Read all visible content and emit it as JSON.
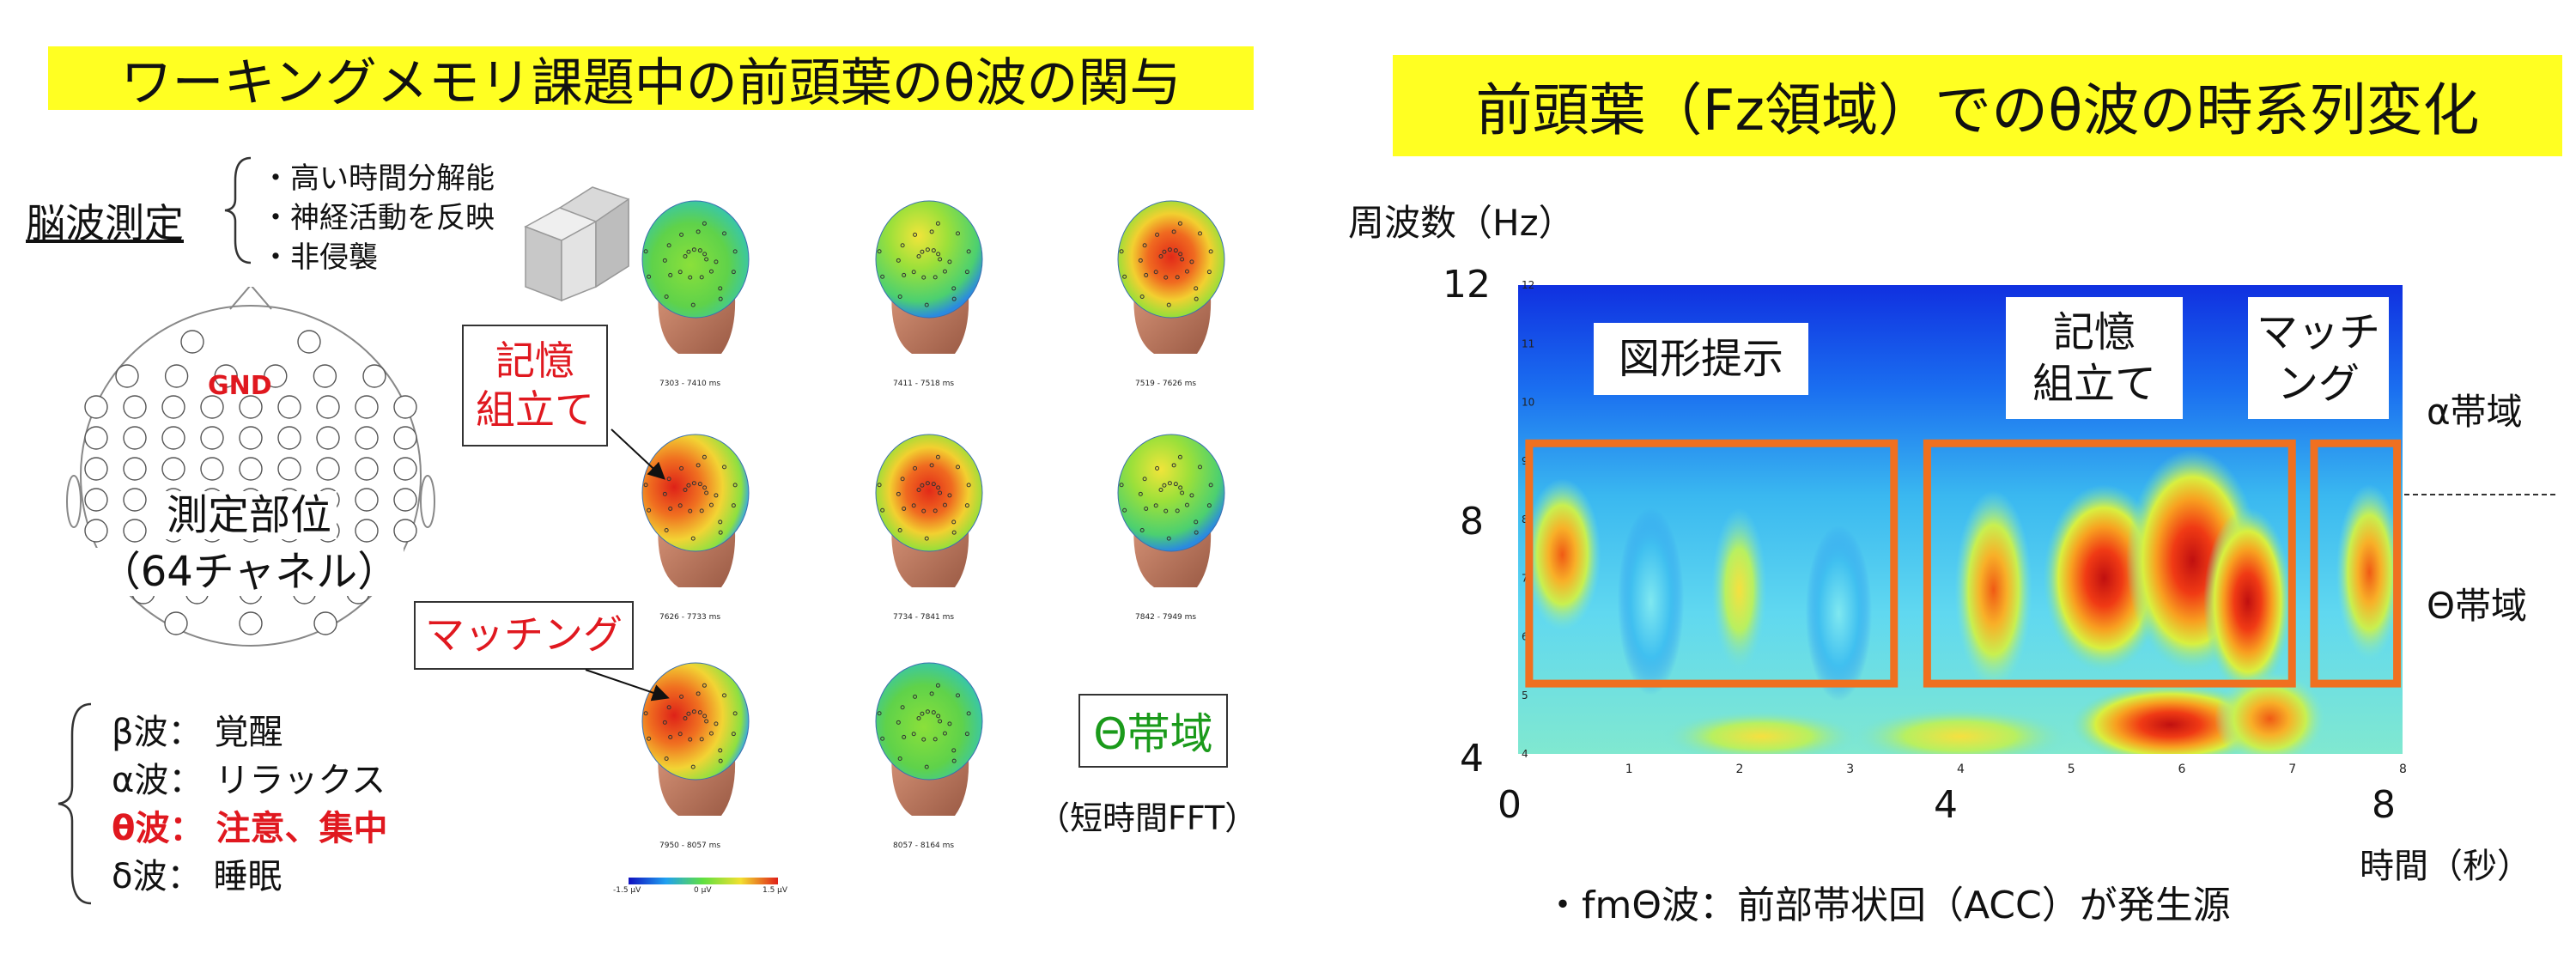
{
  "left": {
    "title": "ワーキングメモリ課題中の前頭葉のθ波の関与",
    "eeg_label": "脳波測定",
    "eeg_features": [
      "・高い時間分解能",
      "・神経活動を反映",
      "・非侵襲"
    ],
    "head_gnd": "GND",
    "head_caption_1": "測定部位",
    "head_caption_2": "（64チャネル）",
    "waves": [
      {
        "name": "β波：",
        "desc": "覚醒",
        "highlight": false
      },
      {
        "name": "α波：",
        "desc": "リラックス",
        "highlight": false
      },
      {
        "name": "θ波：",
        "desc": "注意、集中",
        "highlight": true
      },
      {
        "name": "δ波：",
        "desc": "睡眠",
        "highlight": false
      }
    ],
    "callout_memory_1": "記憶",
    "callout_memory_2": "組立て",
    "callout_matching": "マッチング",
    "theta_band_box": "Θ帯域",
    "fft_note": "（短時間FFT）",
    "maps": [
      {
        "caption": "7303 - 7410 ms"
      },
      {
        "caption": "7411 - 7518 ms"
      },
      {
        "caption": "7519 - 7626 ms"
      },
      {
        "caption": "7626 - 7733 ms"
      },
      {
        "caption": "7734 - 7841 ms"
      },
      {
        "caption": "7842 - 7949 ms"
      },
      {
        "caption": "7950 - 8057 ms"
      },
      {
        "caption": "8057 - 8164 ms"
      }
    ],
    "colorbar": {
      "min": "-1.5 μV",
      "mid": "0 μV",
      "max": "1.5 μV"
    }
  },
  "right": {
    "title": "前頭葉（Fz領域）でのθ波の時系列変化",
    "y_axis_title": "周波数（Hz）",
    "x_axis_title": "時間（秒）",
    "y_major_ticks": [
      "12",
      "8",
      "4"
    ],
    "x_major_ticks": [
      "0",
      "4",
      "8"
    ],
    "y_minor_ticks": [
      "12",
      "11",
      "10",
      "9",
      "8",
      "7",
      "6",
      "5",
      "4"
    ],
    "x_minor_ticks": [
      "0",
      "1",
      "2",
      "3",
      "4",
      "5",
      "6",
      "7",
      "8"
    ],
    "phase_1": "図形提示",
    "phase_2_line1": "記憶",
    "phase_2_line2": "組立て",
    "phase_3_line1": "マッチ",
    "phase_3_line2": "ング",
    "alpha_band": "α帯域",
    "theta_band": "Θ帯域",
    "footnote": "・fmΘ波：前部帯状回（ACC）が発生源"
  },
  "colors": {
    "highlight_yellow": "#ffff22",
    "accent_red": "#e0181f",
    "box_orange": "#f07020",
    "theta_green": "#1a9a1a"
  }
}
